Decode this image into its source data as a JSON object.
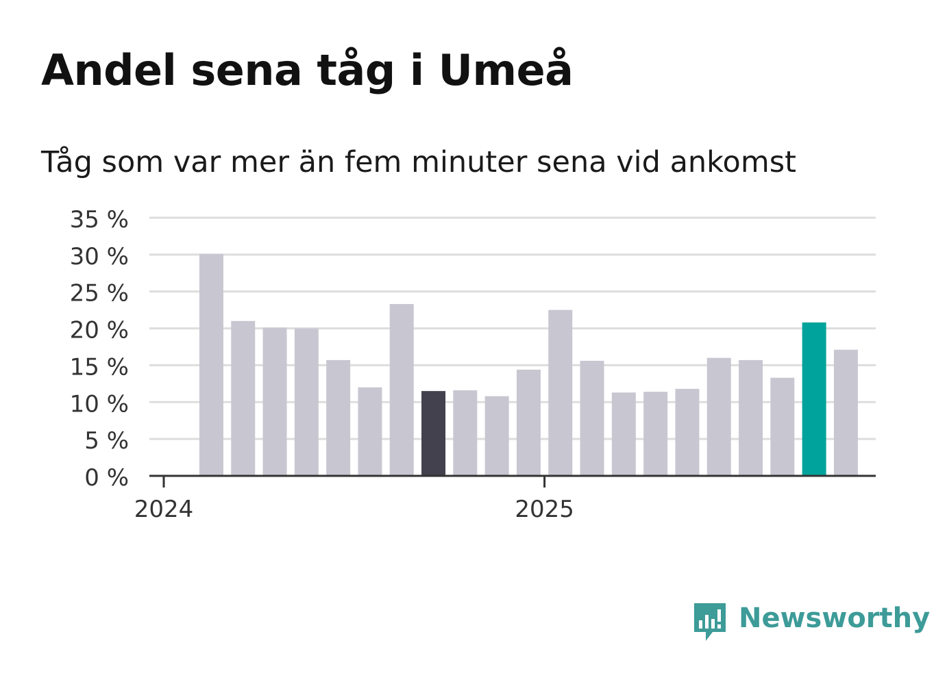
{
  "title": "Andel sena tåg i Umeå",
  "subtitle": "Tåg som var mer än fem minuter sena vid ankomst",
  "brand": {
    "name": "Newsworthy",
    "color": "#3d9b98",
    "icon": "newsworthy-chart-icon"
  },
  "colors": {
    "bar": "#c8c7d1",
    "highlight_dark": "#43414e",
    "highlight_latest": "#00a39b",
    "grid": "#dddddd",
    "axis": "#333333"
  },
  "chart_data": {
    "type": "bar",
    "title": "Andel sena tåg i Umeå",
    "subtitle": "Tåg som var mer än fem minuter sena vid ankomst",
    "xlabel": "",
    "ylabel": "",
    "ylim": [
      0,
      35
    ],
    "yticks": [
      0,
      5,
      10,
      15,
      20,
      25,
      30,
      35
    ],
    "ytick_labels": [
      "0 %",
      "5 %",
      "10 %",
      "15 %",
      "20 %",
      "25 %",
      "30 %",
      "35 %"
    ],
    "xtick_labels": [
      "2024",
      "2025"
    ],
    "xtick_positions": [
      0,
      12
    ],
    "grid": true,
    "categories": [
      "2024-01",
      "2024-02",
      "2024-03",
      "2024-04",
      "2024-05",
      "2024-06",
      "2024-07",
      "2024-08",
      "2024-09",
      "2024-10",
      "2024-11",
      "2024-12",
      "2025-01",
      "2025-02",
      "2025-03",
      "2025-04",
      "2025-05",
      "2025-06",
      "2025-07",
      "2025-08",
      "2025-09",
      "2025-10",
      "2025-11"
    ],
    "values": [
      null,
      30.1,
      21.0,
      20.1,
      20.0,
      15.7,
      12.0,
      23.3,
      11.5,
      11.6,
      10.8,
      14.4,
      22.5,
      15.6,
      11.3,
      11.4,
      11.8,
      16.0,
      15.7,
      13.3,
      20.8,
      17.1,
      null
    ],
    "highlights": {
      "8": "dark",
      "20": "latest"
    }
  }
}
